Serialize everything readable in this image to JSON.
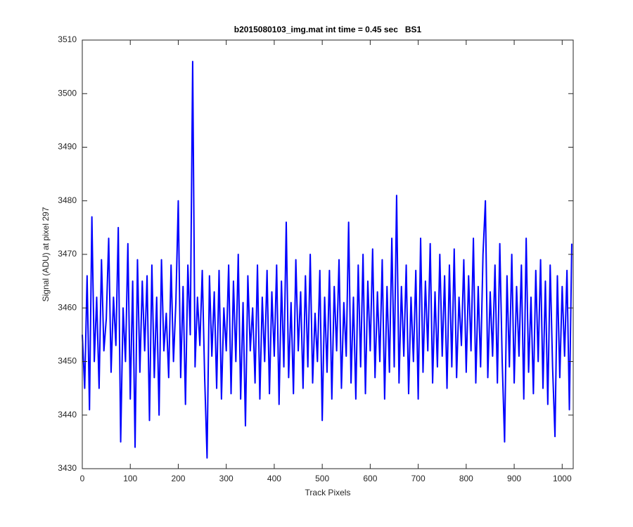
{
  "chart_data": {
    "type": "line",
    "title": "b2015080103_img.mat int time = 0.45 sec   BS1",
    "xlabel": "Track Pixels",
    "ylabel": "Signal (ADU) at pixel 297",
    "xlim": [
      0,
      1023
    ],
    "ylim": [
      3430,
      3510
    ],
    "xticks": [
      0,
      100,
      200,
      300,
      400,
      500,
      600,
      700,
      800,
      900,
      1000
    ],
    "yticks": [
      3430,
      3440,
      3450,
      3460,
      3470,
      3480,
      3490,
      3500,
      3510
    ],
    "grid": false,
    "x": [
      0,
      5,
      10,
      15,
      20,
      25,
      30,
      35,
      40,
      45,
      50,
      55,
      60,
      65,
      70,
      75,
      80,
      85,
      90,
      95,
      100,
      105,
      110,
      115,
      120,
      125,
      130,
      135,
      140,
      145,
      150,
      155,
      160,
      165,
      170,
      175,
      180,
      185,
      190,
      195,
      200,
      205,
      210,
      215,
      220,
      225,
      230,
      235,
      240,
      245,
      250,
      255,
      260,
      265,
      270,
      275,
      280,
      285,
      290,
      295,
      300,
      305,
      310,
      315,
      320,
      325,
      330,
      335,
      340,
      345,
      350,
      355,
      360,
      365,
      370,
      375,
      380,
      385,
      390,
      395,
      400,
      405,
      410,
      415,
      420,
      425,
      430,
      435,
      440,
      445,
      450,
      455,
      460,
      465,
      470,
      475,
      480,
      485,
      490,
      495,
      500,
      505,
      510,
      515,
      520,
      525,
      530,
      535,
      540,
      545,
      550,
      555,
      560,
      565,
      570,
      575,
      580,
      585,
      590,
      595,
      600,
      605,
      610,
      615,
      620,
      625,
      630,
      635,
      640,
      645,
      650,
      655,
      660,
      665,
      670,
      675,
      680,
      685,
      690,
      695,
      700,
      705,
      710,
      715,
      720,
      725,
      730,
      735,
      740,
      745,
      750,
      755,
      760,
      765,
      770,
      775,
      780,
      785,
      790,
      795,
      800,
      805,
      810,
      815,
      820,
      825,
      830,
      835,
      840,
      845,
      850,
      855,
      860,
      865,
      870,
      875,
      880,
      885,
      890,
      895,
      900,
      905,
      910,
      915,
      920,
      925,
      930,
      935,
      940,
      945,
      950,
      955,
      960,
      965,
      970,
      975,
      980,
      985,
      990,
      995,
      1000,
      1005,
      1010,
      1015,
      1020
    ],
    "series": [
      {
        "name": "Signal",
        "color": "#0000ff",
        "values": [
          3455,
          3445,
          3466,
          3441,
          3477,
          3450,
          3462,
          3445,
          3469,
          3452,
          3458,
          3473,
          3448,
          3462,
          3453,
          3475,
          3435,
          3460,
          3450,
          3472,
          3443,
          3465,
          3434,
          3469,
          3448,
          3465,
          3452,
          3466,
          3439,
          3468,
          3447,
          3462,
          3440,
          3469,
          3452,
          3459,
          3447,
          3468,
          3450,
          3461,
          3480,
          3447,
          3464,
          3442,
          3468,
          3455,
          3506,
          3449,
          3462,
          3453,
          3467,
          3447,
          3432,
          3466,
          3451,
          3463,
          3445,
          3467,
          3443,
          3460,
          3452,
          3468,
          3444,
          3465,
          3450,
          3470,
          3443,
          3461,
          3438,
          3466,
          3452,
          3460,
          3446,
          3468,
          3443,
          3462,
          3450,
          3467,
          3444,
          3463,
          3451,
          3468,
          3442,
          3465,
          3449,
          3476,
          3447,
          3461,
          3444,
          3469,
          3452,
          3463,
          3445,
          3466,
          3449,
          3470,
          3446,
          3459,
          3450,
          3467,
          3439,
          3462,
          3448,
          3467,
          3443,
          3464,
          3452,
          3469,
          3445,
          3461,
          3451,
          3476,
          3446,
          3462,
          3443,
          3468,
          3449,
          3470,
          3444,
          3465,
          3452,
          3471,
          3447,
          3463,
          3450,
          3469,
          3443,
          3464,
          3448,
          3473,
          3449,
          3481,
          3446,
          3464,
          3451,
          3468,
          3444,
          3462,
          3450,
          3467,
          3443,
          3473,
          3448,
          3465,
          3452,
          3472,
          3446,
          3463,
          3449,
          3470,
          3451,
          3466,
          3445,
          3468,
          3449,
          3471,
          3447,
          3462,
          3453,
          3469,
          3448,
          3466,
          3452,
          3473,
          3446,
          3464,
          3449,
          3470,
          3480,
          3447,
          3463,
          3451,
          3468,
          3446,
          3472,
          3450,
          3435,
          3466,
          3449,
          3470,
          3446,
          3464,
          3451,
          3468,
          3443,
          3473,
          3448,
          3462,
          3444,
          3467,
          3450,
          3469,
          3445,
          3465,
          3442,
          3468,
          3449,
          3436,
          3466,
          3447,
          3464,
          3451,
          3467,
          3441,
          3472
        ]
      }
    ]
  }
}
